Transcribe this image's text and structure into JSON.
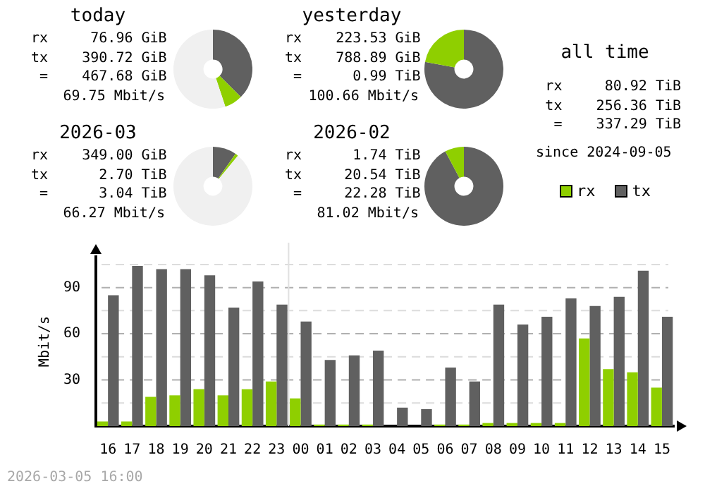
{
  "chart_data": [
    {
      "type": "donut",
      "title": "today",
      "categories": [
        null,
        null,
        null
      ],
      "values": [
        37.5,
        7.4,
        55.1
      ],
      "colors": [
        "#606060",
        "#8fcf00",
        "#f0f0f0"
      ],
      "annotations": [
        "rx     76.96 GiB",
        "tx    390.72 GiB",
        " =    467.68 GiB",
        "  69.75 Mbit/s"
      ]
    },
    {
      "type": "donut",
      "title": "yesterday",
      "categories": [
        null,
        null
      ],
      "values": [
        77.9,
        22.1
      ],
      "colors": [
        "#606060",
        "#8fcf00"
      ],
      "annotations": [
        "rx    223.53 GiB",
        "tx    788.89 GiB",
        " =      0.99 TiB",
        " 100.66 Mbit/s"
      ]
    },
    {
      "type": "donut",
      "title": "2026-03",
      "categories": [
        null,
        null,
        null
      ],
      "values": [
        9.7,
        1.2,
        89.1
      ],
      "colors": [
        "#606060",
        "#8fcf00",
        "#f0f0f0"
      ],
      "annotations": [
        "rx    349.00 GiB",
        "tx      2.70 TiB",
        " =      3.04 TiB",
        "  66.27 Mbit/s"
      ]
    },
    {
      "type": "donut",
      "title": "2026-02",
      "categories": [
        null,
        null
      ],
      "values": [
        92.2,
        7.8
      ],
      "colors": [
        "#606060",
        "#8fcf00"
      ],
      "annotations": [
        "rx      1.74 TiB",
        "tx     20.54 TiB",
        " =     22.28 TiB",
        "  81.02 Mbit/s"
      ]
    },
    {
      "type": "other",
      "title": "all time",
      "annotations": [
        "rx     80.92 TiB",
        "tx    256.36 TiB",
        " =    337.29 TiB",
        "since 2024-09-05"
      ]
    },
    {
      "type": "bar",
      "ylabel": "Mbit/s",
      "categories": [
        "16",
        "17",
        "18",
        "19",
        "20",
        "21",
        "22",
        "23",
        "00",
        "01",
        "02",
        "03",
        "04",
        "05",
        "06",
        "07",
        "08",
        "09",
        "10",
        "11",
        "12",
        "13",
        "14",
        "15"
      ],
      "series": [
        {
          "name": "rx",
          "color": "#8fcf00",
          "values": [
            3,
            3,
            19,
            20,
            24,
            20,
            24,
            29,
            18,
            1,
            1,
            1,
            0,
            0,
            1,
            1,
            2,
            2,
            2,
            2,
            57,
            37,
            35,
            25
          ]
        },
        {
          "name": "tx",
          "color": "#606060",
          "values": [
            85,
            104,
            102,
            102,
            98,
            77,
            94,
            79,
            68,
            43,
            46,
            49,
            12,
            11,
            38,
            29,
            79,
            66,
            71,
            83,
            78,
            84,
            101,
            71
          ]
        }
      ],
      "ylim": [
        0,
        110
      ],
      "yticks": [
        {
          "value": 15,
          "label": null
        },
        30,
        {
          "value": 45,
          "label": null
        },
        60,
        {
          "value": 75,
          "label": null
        },
        90,
        {
          "value": 105,
          "label": null
        }
      ],
      "grid": "y",
      "legend": "top right",
      "ref_lines": [
        {
          "axis": "x",
          "value": "00",
          "color": "#e0e0e0"
        }
      ],
      "annotations": [
        "2026-03-05 16:00"
      ]
    }
  ]
}
